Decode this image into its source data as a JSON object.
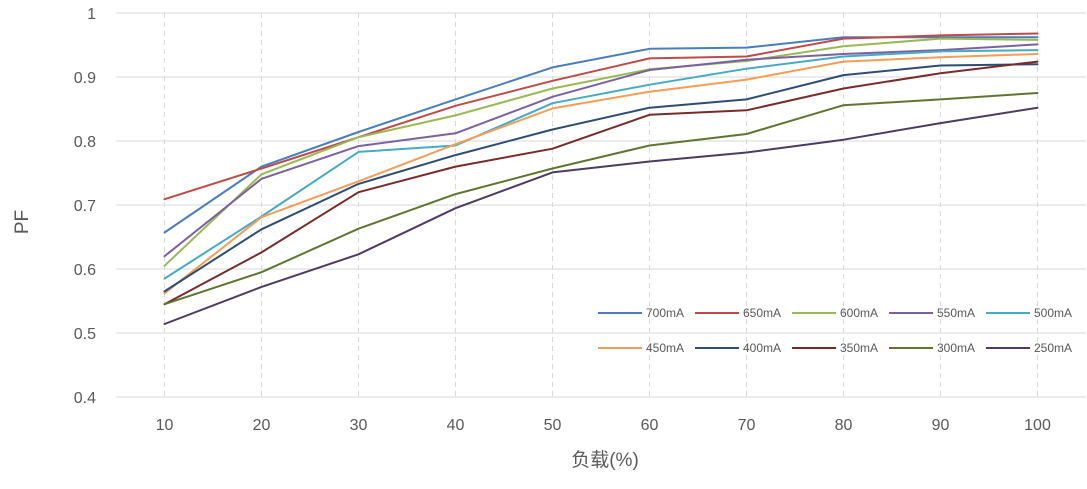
{
  "chart_data": {
    "type": "line",
    "title": "",
    "xlabel": "负载(%)",
    "ylabel": "PF",
    "ylim": [
      0.4,
      1.0
    ],
    "yticks": [
      0.4,
      0.5,
      0.6,
      0.7,
      0.8,
      0.9,
      1
    ],
    "ytick_labels": [
      "0.4",
      "0.5",
      "0.6",
      "0.7",
      "0.8",
      "0.9",
      "1"
    ],
    "x": [
      10,
      20,
      30,
      40,
      50,
      60,
      70,
      80,
      90,
      100
    ],
    "x_labels": [
      "10",
      "20",
      "30",
      "40",
      "50",
      "60",
      "70",
      "80",
      "90",
      "100"
    ],
    "grid": {
      "horizontal": true,
      "vertical": "dashed"
    },
    "legend": {
      "position": "bottom-right",
      "rows": 2
    },
    "series": [
      {
        "name": "700mA",
        "color": "#4a7ebb",
        "values": [
          0.657,
          0.76,
          0.814,
          0.865,
          0.915,
          0.944,
          0.946,
          0.962,
          0.962,
          0.962
        ]
      },
      {
        "name": "650mA",
        "color": "#be4b48",
        "values": [
          0.709,
          0.757,
          0.806,
          0.855,
          0.894,
          0.929,
          0.932,
          0.96,
          0.965,
          0.968
        ]
      },
      {
        "name": "600mA",
        "color": "#98b954",
        "values": [
          0.605,
          0.748,
          0.806,
          0.84,
          0.882,
          0.912,
          0.925,
          0.948,
          0.96,
          0.958
        ]
      },
      {
        "name": "550mA",
        "color": "#7d60a0",
        "values": [
          0.62,
          0.741,
          0.792,
          0.812,
          0.869,
          0.911,
          0.927,
          0.936,
          0.942,
          0.951
        ]
      },
      {
        "name": "500mA",
        "color": "#46aac5",
        "values": [
          0.585,
          0.682,
          0.783,
          0.793,
          0.859,
          0.888,
          0.913,
          0.932,
          0.94,
          0.942
        ]
      },
      {
        "name": "450mA",
        "color": "#f59d56",
        "values": [
          0.562,
          0.681,
          0.737,
          0.795,
          0.851,
          0.877,
          0.896,
          0.924,
          0.931,
          0.936
        ]
      },
      {
        "name": "400mA",
        "color": "#2c4d75",
        "values": [
          0.565,
          0.662,
          0.733,
          0.778,
          0.818,
          0.852,
          0.865,
          0.903,
          0.918,
          0.92
        ]
      },
      {
        "name": "350mA",
        "color": "#772c2a",
        "values": [
          0.545,
          0.626,
          0.72,
          0.76,
          0.788,
          0.841,
          0.848,
          0.882,
          0.906,
          0.924
        ]
      },
      {
        "name": "300mA",
        "color": "#5f7530",
        "values": [
          0.545,
          0.595,
          0.663,
          0.717,
          0.757,
          0.793,
          0.811,
          0.856,
          0.865,
          0.875
        ]
      },
      {
        "name": "250mA",
        "color": "#4d3b62",
        "values": [
          0.514,
          0.572,
          0.623,
          0.695,
          0.751,
          0.768,
          0.782,
          0.802,
          0.828,
          0.852
        ]
      }
    ]
  }
}
